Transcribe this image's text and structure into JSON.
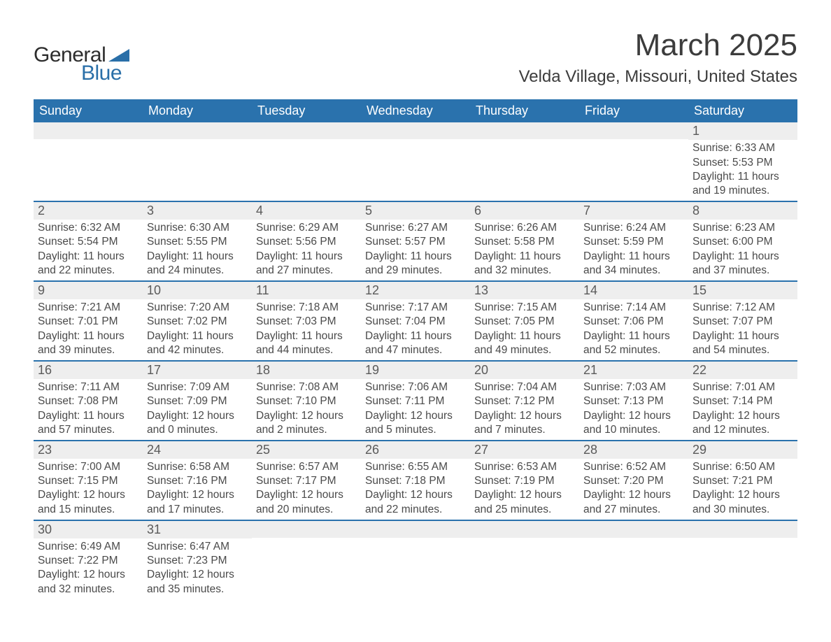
{
  "logo": {
    "word1": "General",
    "word2": "Blue"
  },
  "title": {
    "month": "March 2025",
    "location": "Velda Village, Missouri, United States"
  },
  "colors": {
    "header_bg": "#2a72ad",
    "header_text": "#ffffff",
    "row_divider": "#2a72ad",
    "daynum_bg": "#eeeeee",
    "body_text": "#4a4a4a",
    "logo_blue": "#2a6fa8"
  },
  "dow": [
    "Sunday",
    "Monday",
    "Tuesday",
    "Wednesday",
    "Thursday",
    "Friday",
    "Saturday"
  ],
  "weeks": [
    [
      null,
      null,
      null,
      null,
      null,
      null,
      {
        "d": "1",
        "sr": "6:33 AM",
        "ss": "5:53 PM",
        "dl": "11 hours and 19 minutes."
      }
    ],
    [
      {
        "d": "2",
        "sr": "6:32 AM",
        "ss": "5:54 PM",
        "dl": "11 hours and 22 minutes."
      },
      {
        "d": "3",
        "sr": "6:30 AM",
        "ss": "5:55 PM",
        "dl": "11 hours and 24 minutes."
      },
      {
        "d": "4",
        "sr": "6:29 AM",
        "ss": "5:56 PM",
        "dl": "11 hours and 27 minutes."
      },
      {
        "d": "5",
        "sr": "6:27 AM",
        "ss": "5:57 PM",
        "dl": "11 hours and 29 minutes."
      },
      {
        "d": "6",
        "sr": "6:26 AM",
        "ss": "5:58 PM",
        "dl": "11 hours and 32 minutes."
      },
      {
        "d": "7",
        "sr": "6:24 AM",
        "ss": "5:59 PM",
        "dl": "11 hours and 34 minutes."
      },
      {
        "d": "8",
        "sr": "6:23 AM",
        "ss": "6:00 PM",
        "dl": "11 hours and 37 minutes."
      }
    ],
    [
      {
        "d": "9",
        "sr": "7:21 AM",
        "ss": "7:01 PM",
        "dl": "11 hours and 39 minutes."
      },
      {
        "d": "10",
        "sr": "7:20 AM",
        "ss": "7:02 PM",
        "dl": "11 hours and 42 minutes."
      },
      {
        "d": "11",
        "sr": "7:18 AM",
        "ss": "7:03 PM",
        "dl": "11 hours and 44 minutes."
      },
      {
        "d": "12",
        "sr": "7:17 AM",
        "ss": "7:04 PM",
        "dl": "11 hours and 47 minutes."
      },
      {
        "d": "13",
        "sr": "7:15 AM",
        "ss": "7:05 PM",
        "dl": "11 hours and 49 minutes."
      },
      {
        "d": "14",
        "sr": "7:14 AM",
        "ss": "7:06 PM",
        "dl": "11 hours and 52 minutes."
      },
      {
        "d": "15",
        "sr": "7:12 AM",
        "ss": "7:07 PM",
        "dl": "11 hours and 54 minutes."
      }
    ],
    [
      {
        "d": "16",
        "sr": "7:11 AM",
        "ss": "7:08 PM",
        "dl": "11 hours and 57 minutes."
      },
      {
        "d": "17",
        "sr": "7:09 AM",
        "ss": "7:09 PM",
        "dl": "12 hours and 0 minutes."
      },
      {
        "d": "18",
        "sr": "7:08 AM",
        "ss": "7:10 PM",
        "dl": "12 hours and 2 minutes."
      },
      {
        "d": "19",
        "sr": "7:06 AM",
        "ss": "7:11 PM",
        "dl": "12 hours and 5 minutes."
      },
      {
        "d": "20",
        "sr": "7:04 AM",
        "ss": "7:12 PM",
        "dl": "12 hours and 7 minutes."
      },
      {
        "d": "21",
        "sr": "7:03 AM",
        "ss": "7:13 PM",
        "dl": "12 hours and 10 minutes."
      },
      {
        "d": "22",
        "sr": "7:01 AM",
        "ss": "7:14 PM",
        "dl": "12 hours and 12 minutes."
      }
    ],
    [
      {
        "d": "23",
        "sr": "7:00 AM",
        "ss": "7:15 PM",
        "dl": "12 hours and 15 minutes."
      },
      {
        "d": "24",
        "sr": "6:58 AM",
        "ss": "7:16 PM",
        "dl": "12 hours and 17 minutes."
      },
      {
        "d": "25",
        "sr": "6:57 AM",
        "ss": "7:17 PM",
        "dl": "12 hours and 20 minutes."
      },
      {
        "d": "26",
        "sr": "6:55 AM",
        "ss": "7:18 PM",
        "dl": "12 hours and 22 minutes."
      },
      {
        "d": "27",
        "sr": "6:53 AM",
        "ss": "7:19 PM",
        "dl": "12 hours and 25 minutes."
      },
      {
        "d": "28",
        "sr": "6:52 AM",
        "ss": "7:20 PM",
        "dl": "12 hours and 27 minutes."
      },
      {
        "d": "29",
        "sr": "6:50 AM",
        "ss": "7:21 PM",
        "dl": "12 hours and 30 minutes."
      }
    ],
    [
      {
        "d": "30",
        "sr": "6:49 AM",
        "ss": "7:22 PM",
        "dl": "12 hours and 32 minutes."
      },
      {
        "d": "31",
        "sr": "6:47 AM",
        "ss": "7:23 PM",
        "dl": "12 hours and 35 minutes."
      },
      null,
      null,
      null,
      null,
      null
    ]
  ],
  "labels": {
    "sunrise": "Sunrise:",
    "sunset": "Sunset:",
    "daylight": "Daylight:"
  }
}
